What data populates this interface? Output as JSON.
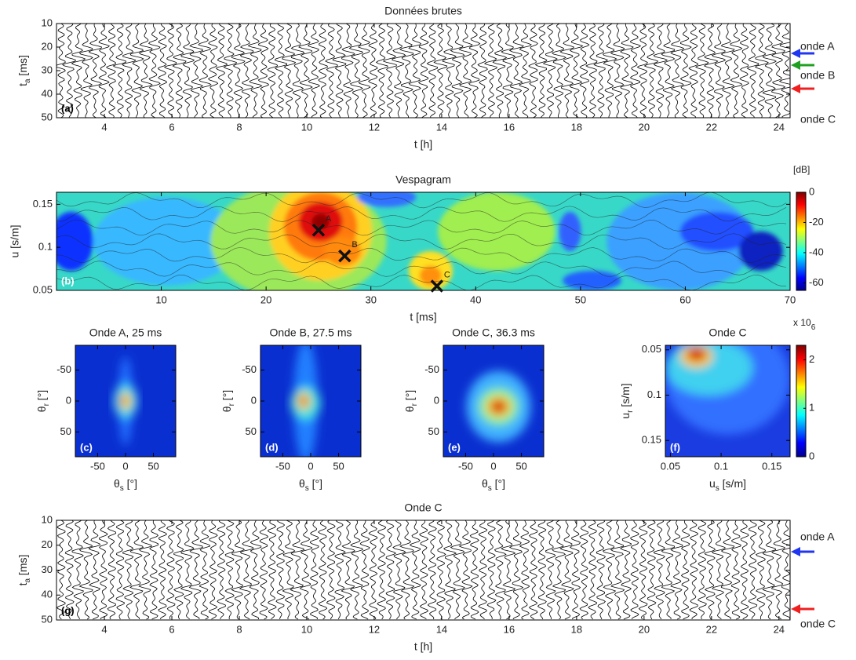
{
  "chart_data": [
    {
      "type": "waveform",
      "title": "Données brutes",
      "xlabel": "t [h]",
      "ylabel": [
        "t",
        "a",
        " [ms]"
      ],
      "panel_label": "(a)",
      "xlim": [
        2.58,
        24.33
      ],
      "ylim": [
        10,
        50
      ],
      "y_direction": "reverse",
      "xticks": [
        4,
        6,
        8,
        10,
        12,
        14,
        16,
        18,
        20,
        22,
        24
      ],
      "yticks": [
        10,
        20,
        30,
        40,
        50
      ],
      "annotations": [
        {
          "text": "onde A",
          "color": "#2036f0"
        },
        {
          "text": "onde B",
          "color": "#20a020"
        },
        {
          "text": "onde C",
          "color": "#f02020"
        }
      ]
    },
    {
      "type": "heatmap",
      "title": "Vespagram",
      "xlabel": "t [ms]",
      "ylabel": "u [s/m]",
      "panel_label": "(b)",
      "xlim": [
        0,
        70
      ],
      "ylim": [
        0.05,
        0.164
      ],
      "xticks": [
        10,
        20,
        30,
        40,
        50,
        60,
        70
      ],
      "yticks": [
        0.05,
        0.1,
        0.15
      ],
      "markers": {
        "x": [
          25,
          27.5,
          36.3
        ],
        "y": [
          0.12,
          0.09,
          0.055
        ],
        "labels": [
          "A",
          "B",
          "C"
        ]
      },
      "colorbar": {
        "label": "[dB]",
        "lim": [
          -65,
          0
        ],
        "ticks": [
          0,
          -20,
          -40,
          -60
        ]
      }
    },
    {
      "type": "heatmap",
      "title": "Onde A, 25 ms",
      "xlabel": [
        "θ",
        "s",
        " [°]"
      ],
      "ylabel": [
        "θ",
        "r",
        " [°]"
      ],
      "panel_label": "(c)",
      "xlim": [
        -90,
        90
      ],
      "ylim": [
        -90,
        90
      ],
      "y_direction": "reverse",
      "xticks": [
        -50,
        0,
        50
      ],
      "yticks": [
        -50,
        0,
        50
      ]
    },
    {
      "type": "heatmap",
      "title": "Onde B, 27.5 ms",
      "xlabel": [
        "θ",
        "s",
        " [°]"
      ],
      "ylabel": [
        "θ",
        "r",
        " [°]"
      ],
      "panel_label": "(d)",
      "xlim": [
        -90,
        90
      ],
      "ylim": [
        -90,
        90
      ],
      "y_direction": "reverse",
      "xticks": [
        -50,
        0,
        50
      ],
      "yticks": [
        -50,
        0,
        50
      ]
    },
    {
      "type": "heatmap",
      "title": "Onde C, 36.3 ms",
      "xlabel": [
        "θ",
        "s",
        " [°]"
      ],
      "ylabel": [
        "θ",
        "r",
        " [°]"
      ],
      "panel_label": "(e)",
      "xlim": [
        -90,
        90
      ],
      "ylim": [
        -90,
        90
      ],
      "y_direction": "reverse",
      "xticks": [
        -50,
        0,
        50
      ],
      "yticks": [
        -50,
        0,
        50
      ]
    },
    {
      "type": "heatmap",
      "title": "Onde C",
      "xlabel": [
        "u",
        "s",
        " [s/m]"
      ],
      "ylabel": [
        "u",
        "r",
        " [s/m]"
      ],
      "panel_label": "(f)",
      "xlim": [
        0.045,
        0.168
      ],
      "ylim": [
        0.045,
        0.168
      ],
      "y_direction": "reverse",
      "xticks": [
        0.05,
        0.1,
        0.15
      ],
      "yticks": [
        0.05,
        0.1,
        0.15
      ],
      "colorbar": {
        "label": [
          "x 10",
          "6"
        ],
        "lim": [
          0,
          2.3
        ],
        "ticks": [
          0,
          1,
          2
        ]
      }
    },
    {
      "type": "waveform",
      "title": "Onde C",
      "xlabel": "t [h]",
      "ylabel": [
        "t",
        "a",
        " [ms]"
      ],
      "panel_label": "(g)",
      "xlim": [
        2.58,
        24.33
      ],
      "ylim": [
        10,
        50
      ],
      "y_direction": "reverse",
      "xticks": [
        4,
        6,
        8,
        10,
        12,
        14,
        16,
        18,
        20,
        22,
        24
      ],
      "yticks": [
        10,
        20,
        30,
        40,
        50
      ],
      "annotations": [
        {
          "text": "onde A",
          "color": "#2036f0"
        },
        {
          "text": "onde C",
          "color": "#f02020"
        }
      ]
    }
  ]
}
